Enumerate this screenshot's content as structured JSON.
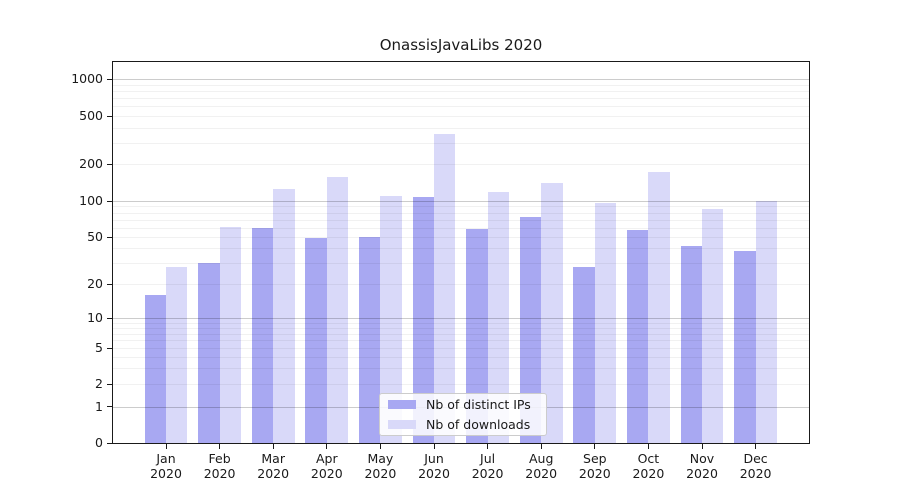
{
  "title": "OnassisJavaLibs 2020",
  "chart_data": {
    "type": "bar",
    "title": "OnassisJavaLibs 2020",
    "categories": [
      "Jan",
      "Feb",
      "Mar",
      "Apr",
      "May",
      "Jun",
      "Jul",
      "Aug",
      "Sep",
      "Oct",
      "Nov",
      "Dec"
    ],
    "category_year": "2020",
    "series": [
      {
        "name": "Nb of distinct IPs",
        "color": "#a8a8f2",
        "values": [
          16,
          30,
          60,
          49,
          50,
          108,
          58,
          73,
          28,
          57,
          42,
          38
        ]
      },
      {
        "name": "Nb of downloads",
        "color": "#d9d9f9",
        "values": [
          28,
          61,
          125,
          157,
          110,
          355,
          118,
          140,
          97,
          172,
          86,
          100
        ]
      }
    ],
    "xlabel": "",
    "ylabel": "",
    "yscale": "symlog",
    "ylim": [
      0,
      1300
    ],
    "yticks": [
      0,
      1,
      2,
      5,
      10,
      20,
      50,
      100,
      200,
      500,
      1000
    ],
    "grid": true,
    "legend_position": "lower center"
  },
  "legend": {
    "items": [
      {
        "label": "Nb of distinct IPs",
        "color": "#a8a8f2"
      },
      {
        "label": "Nb of downloads",
        "color": "#d9d9f9"
      }
    ]
  },
  "colors": {
    "background": "#ffffff",
    "spine": "#1a1a1a",
    "major_grid": "#cccccc",
    "minor_grid": "#f0f0f0",
    "bar_dark": "#a8a8f2",
    "bar_light": "#d9d9f9",
    "text": "#1a1a1a"
  }
}
